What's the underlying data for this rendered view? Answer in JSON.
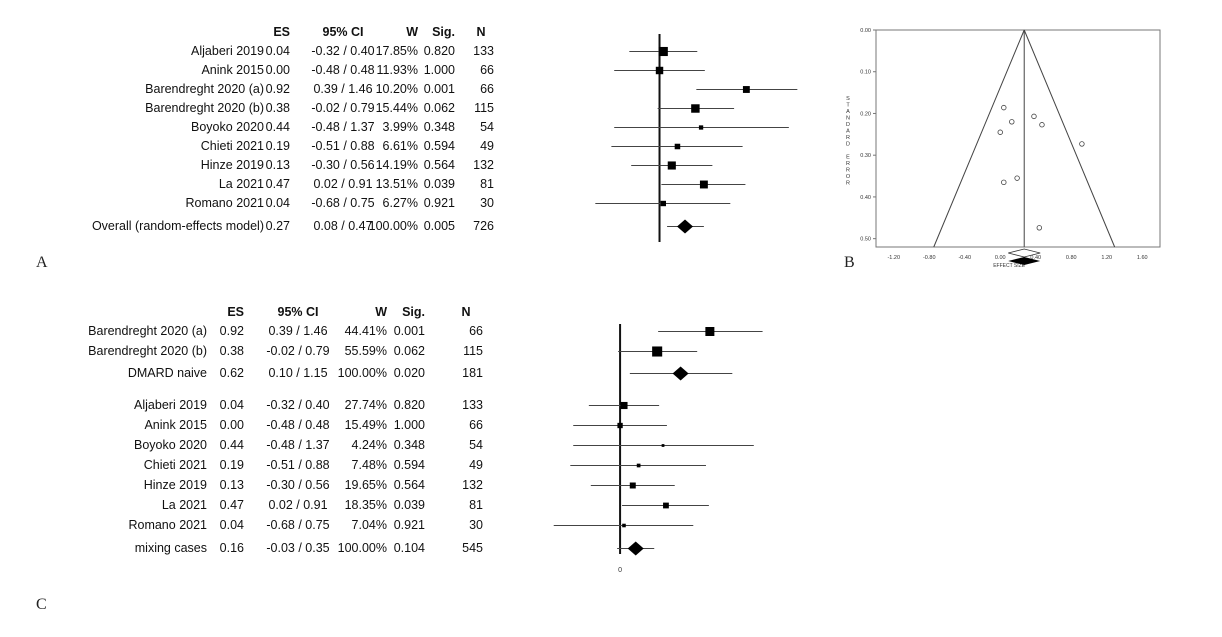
{
  "panel_labels": {
    "a": "A",
    "b": "B",
    "c": "C"
  },
  "headers": {
    "es": "ES",
    "ci": "95% CI",
    "w": "W",
    "sig": "Sig.",
    "n": "N"
  },
  "chart_data": [
    {
      "type": "forest",
      "panel": "A",
      "columns": [
        "ES",
        "95% CI",
        "W",
        "Sig.",
        "N"
      ],
      "rows": [
        {
          "study": "Aljaberi 2019",
          "es": "0.04",
          "ci": "-0.32 / 0.40",
          "w": "17.85%",
          "sig": "0.820",
          "n": "133",
          "es_v": 0.04,
          "lo": -0.32,
          "hi": 0.4,
          "w_v": 17.85,
          "overall": false
        },
        {
          "study": "Anink 2015",
          "es": "0.00",
          "ci": "-0.48 / 0.48",
          "w": "11.93%",
          "sig": "1.000",
          "n": "66",
          "es_v": 0.0,
          "lo": -0.48,
          "hi": 0.48,
          "w_v": 11.93,
          "overall": false
        },
        {
          "study": "Barendreght 2020 (a)",
          "es": "0.92",
          "ci": "0.39 / 1.46",
          "w": "10.20%",
          "sig": "0.001",
          "n": "66",
          "es_v": 0.92,
          "lo": 0.39,
          "hi": 1.46,
          "w_v": 10.2,
          "overall": false
        },
        {
          "study": "Barendreght 2020 (b)",
          "es": "0.38",
          "ci": "-0.02 / 0.79",
          "w": "15.44%",
          "sig": "0.062",
          "n": "115",
          "es_v": 0.38,
          "lo": -0.02,
          "hi": 0.79,
          "w_v": 15.44,
          "overall": false
        },
        {
          "study": "Boyoko 2020",
          "es": "0.44",
          "ci": "-0.48 / 1.37",
          "w": "3.99%",
          "sig": "0.348",
          "n": "54",
          "es_v": 0.44,
          "lo": -0.48,
          "hi": 1.37,
          "w_v": 3.99,
          "overall": false
        },
        {
          "study": "Chieti 2021",
          "es": "0.19",
          "ci": "-0.51 / 0.88",
          "w": "6.61%",
          "sig": "0.594",
          "n": "49",
          "es_v": 0.19,
          "lo": -0.51,
          "hi": 0.88,
          "w_v": 6.61,
          "overall": false
        },
        {
          "study": "Hinze 2019",
          "es": "0.13",
          "ci": "-0.30 / 0.56",
          "w": "14.19%",
          "sig": "0.564",
          "n": "132",
          "es_v": 0.13,
          "lo": -0.3,
          "hi": 0.56,
          "w_v": 14.19,
          "overall": false
        },
        {
          "study": "La 2021",
          "es": "0.47",
          "ci": "0.02 / 0.91",
          "w": "13.51%",
          "sig": "0.039",
          "n": "81",
          "es_v": 0.47,
          "lo": 0.02,
          "hi": 0.91,
          "w_v": 13.51,
          "overall": false
        },
        {
          "study": "Romano 2021",
          "es": "0.04",
          "ci": "-0.68 / 0.75",
          "w": "6.27%",
          "sig": "0.921",
          "n": "30",
          "es_v": 0.04,
          "lo": -0.68,
          "hi": 0.75,
          "w_v": 6.27,
          "overall": false
        },
        {
          "study": "Overall (random-effects model)",
          "es": "0.27",
          "ci": "0.08 / 0.47",
          "w": "100.00%",
          "sig": "0.005",
          "n": "726",
          "es_v": 0.27,
          "lo": 0.08,
          "hi": 0.47,
          "w_v": 100,
          "overall": true
        }
      ],
      "xlim": [
        -0.8,
        1.7
      ],
      "reference_line": 0
    },
    {
      "type": "scatter",
      "panel": "B",
      "subtype": "funnel",
      "xlabel": "EFFECT SIZE",
      "ylabel": "STANDARD ERROR",
      "xlim": [
        -1.4,
        1.8
      ],
      "ylim": [
        0.0,
        0.52
      ],
      "y_inverted": true,
      "x_ticks": [
        "-1.20",
        "-0.80",
        "-0.40",
        "0.00",
        "0.40",
        "0.80",
        "1.20",
        "1.60"
      ],
      "x_tick_values": [
        -1.2,
        -0.8,
        -0.4,
        0.0,
        0.4,
        0.8,
        1.2,
        1.6
      ],
      "y_ticks": [
        "0.00",
        "0.10",
        "0.20",
        "0.30",
        "0.40",
        "0.50"
      ],
      "y_tick_values": [
        0.0,
        0.1,
        0.2,
        0.3,
        0.4,
        0.5
      ],
      "pooled_effect": 0.27,
      "points": [
        {
          "x": 0.04,
          "y": 0.186
        },
        {
          "x": 0.0,
          "y": 0.245
        },
        {
          "x": 0.92,
          "y": 0.273
        },
        {
          "x": 0.38,
          "y": 0.207
        },
        {
          "x": 0.44,
          "y": 0.474
        },
        {
          "x": 0.19,
          "y": 0.355
        },
        {
          "x": 0.13,
          "y": 0.22
        },
        {
          "x": 0.47,
          "y": 0.227
        },
        {
          "x": 0.04,
          "y": 0.365
        }
      ]
    },
    {
      "type": "forest",
      "panel": "C",
      "columns": [
        "ES",
        "95% CI",
        "W",
        "Sig.",
        "N"
      ],
      "rows": [
        {
          "study": "Barendreght 2020 (a)",
          "es": "0.92",
          "ci": "0.39 / 1.46",
          "w": "44.41%",
          "sig": "0.001",
          "n": "66",
          "es_v": 0.92,
          "lo": 0.39,
          "hi": 1.46,
          "w_v": 44.41,
          "overall": false
        },
        {
          "study": "Barendreght 2020 (b)",
          "es": "0.38",
          "ci": "-0.02 / 0.79",
          "w": "55.59%",
          "sig": "0.062",
          "n": "115",
          "es_v": 0.38,
          "lo": -0.02,
          "hi": 0.79,
          "w_v": 55.59,
          "overall": false
        },
        {
          "study": "DMARD naive",
          "es": "0.62",
          "ci": "0.10 / 1.15",
          "w": "100.00%",
          "sig": "0.020",
          "n": "181",
          "es_v": 0.62,
          "lo": 0.1,
          "hi": 1.15,
          "w_v": 100,
          "overall": true
        },
        {
          "study": "Aljaberi 2019",
          "es": "0.04",
          "ci": "-0.32 / 0.40",
          "w": "27.74%",
          "sig": "0.820",
          "n": "133",
          "es_v": 0.04,
          "lo": -0.32,
          "hi": 0.4,
          "w_v": 27.74,
          "overall": false
        },
        {
          "study": "Anink 2015",
          "es": "0.00",
          "ci": "-0.48 / 0.48",
          "w": "15.49%",
          "sig": "1.000",
          "n": "66",
          "es_v": 0.0,
          "lo": -0.48,
          "hi": 0.48,
          "w_v": 15.49,
          "overall": false
        },
        {
          "study": "Boyoko 2020",
          "es": "0.44",
          "ci": "-0.48 / 1.37",
          "w": "4.24%",
          "sig": "0.348",
          "n": "54",
          "es_v": 0.44,
          "lo": -0.48,
          "hi": 1.37,
          "w_v": 4.24,
          "overall": false
        },
        {
          "study": "Chieti 2021",
          "es": "0.19",
          "ci": "-0.51 / 0.88",
          "w": "7.48%",
          "sig": "0.594",
          "n": "49",
          "es_v": 0.19,
          "lo": -0.51,
          "hi": 0.88,
          "w_v": 7.48,
          "overall": false
        },
        {
          "study": "Hinze 2019",
          "es": "0.13",
          "ci": "-0.30 / 0.56",
          "w": "19.65%",
          "sig": "0.564",
          "n": "132",
          "es_v": 0.13,
          "lo": -0.3,
          "hi": 0.56,
          "w_v": 19.65,
          "overall": false
        },
        {
          "study": "La 2021",
          "es": "0.47",
          "ci": "0.02 / 0.91",
          "w": "18.35%",
          "sig": "0.039",
          "n": "81",
          "es_v": 0.47,
          "lo": 0.02,
          "hi": 0.91,
          "w_v": 18.35,
          "overall": false
        },
        {
          "study": "Romano 2021",
          "es": "0.04",
          "ci": "-0.68 / 0.75",
          "w": "7.04%",
          "sig": "0.921",
          "n": "30",
          "es_v": 0.04,
          "lo": -0.68,
          "hi": 0.75,
          "w_v": 7.04,
          "overall": false
        },
        {
          "study": "mixing cases",
          "es": "0.16",
          "ci": "-0.03 / 0.35",
          "w": "100.00%",
          "sig": "0.104",
          "n": "545",
          "es_v": 0.16,
          "lo": -0.03,
          "hi": 0.35,
          "w_v": 100,
          "overall": true
        }
      ],
      "xlim": [
        -0.8,
        1.7
      ],
      "reference_line": 0,
      "x_tick_label": "0"
    }
  ]
}
